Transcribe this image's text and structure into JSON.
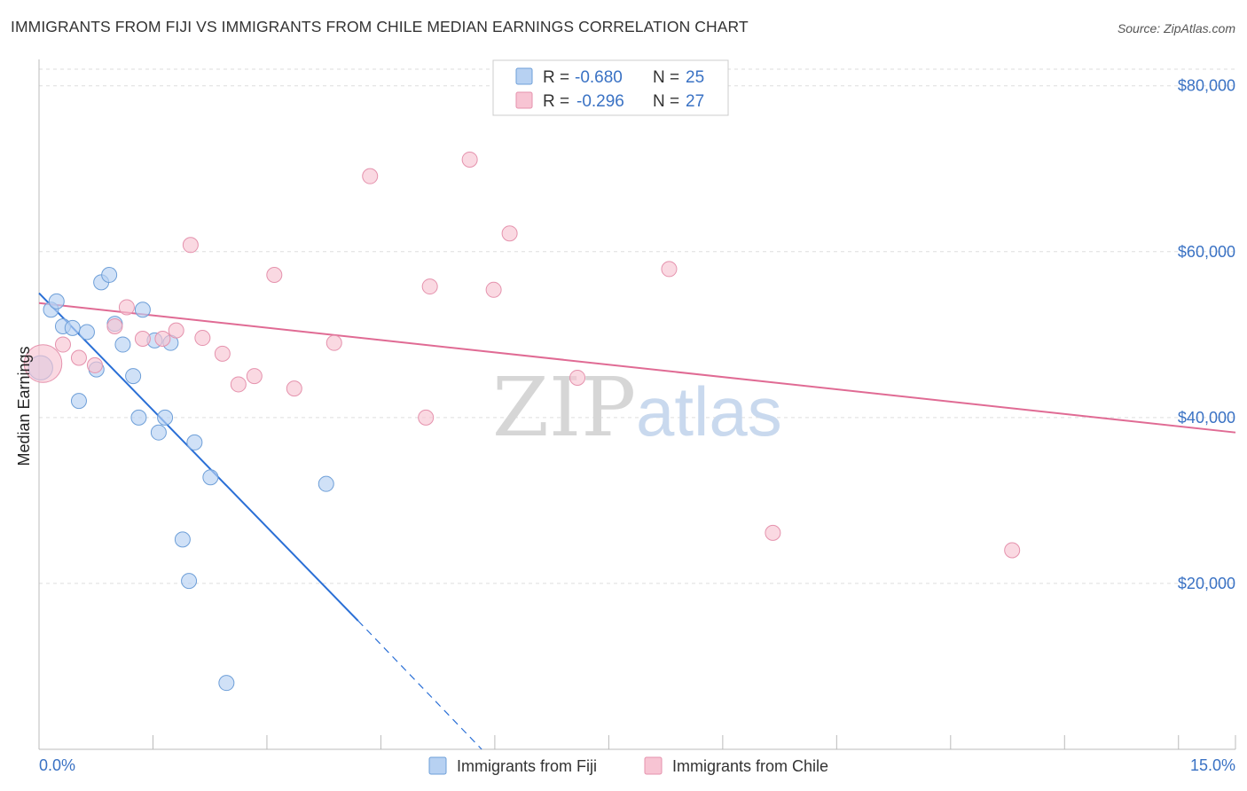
{
  "title": "IMMIGRANTS FROM FIJI VS IMMIGRANTS FROM CHILE MEDIAN EARNINGS CORRELATION CHART",
  "source": "Source: ZipAtlas.com",
  "watermark": {
    "part1": "ZIP",
    "part2": "atlas"
  },
  "colors": {
    "fiji_fill": "#b7d1f2",
    "fiji_stroke": "#6e9fd8",
    "fiji_line": "#2a6fd6",
    "chile_fill": "#f7c4d3",
    "chile_stroke": "#e592ad",
    "chile_line": "#e06b94",
    "grid": "#dddddd",
    "axis_text": "#3a72c4"
  },
  "chart_data": {
    "type": "scatter",
    "xlabel": "",
    "ylabel": "Median Earnings",
    "xlim": [
      0,
      15
    ],
    "ylim": [
      0,
      82000
    ],
    "x_tick_labels": {
      "left": "0.0%",
      "right": "15.0%"
    },
    "y_ticks": [
      {
        "value": 20000,
        "label": "$20,000"
      },
      {
        "value": 40000,
        "label": "$40,000"
      },
      {
        "value": 60000,
        "label": "$60,000"
      },
      {
        "value": 80000,
        "label": "$80,000"
      }
    ],
    "legend": {
      "rows": [
        {
          "r_label": "R =",
          "r_value": "-0.680",
          "n_label": "N =",
          "n_value": "25"
        },
        {
          "r_label": "R =",
          "r_value": "-0.296",
          "n_label": "N =",
          "n_value": "27"
        }
      ]
    },
    "series": [
      {
        "name": "Immigrants from Fiji",
        "points": [
          [
            0.02,
            46000,
            1.6
          ],
          [
            0.15,
            53000,
            1
          ],
          [
            0.22,
            54000,
            1
          ],
          [
            0.3,
            51000,
            1
          ],
          [
            0.42,
            50800,
            1
          ],
          [
            0.6,
            50300,
            1
          ],
          [
            0.72,
            45800,
            1
          ],
          [
            0.78,
            56300,
            1
          ],
          [
            0.88,
            57200,
            1
          ],
          [
            0.95,
            51300,
            1
          ],
          [
            1.05,
            48800,
            1
          ],
          [
            1.18,
            45000,
            1
          ],
          [
            1.25,
            40000,
            1
          ],
          [
            1.3,
            53000,
            1
          ],
          [
            1.45,
            49300,
            1
          ],
          [
            1.5,
            38200,
            1
          ],
          [
            1.58,
            40000,
            1
          ],
          [
            1.65,
            49000,
            1
          ],
          [
            0.5,
            42000,
            1
          ],
          [
            1.95,
            37000,
            1
          ],
          [
            2.15,
            32800,
            1
          ],
          [
            1.8,
            25300,
            1
          ],
          [
            1.88,
            20300,
            1
          ],
          [
            3.6,
            32000,
            1
          ],
          [
            2.35,
            8000,
            1
          ]
        ],
        "trend": {
          "x0": 0.0,
          "y0": 55000,
          "x1": 4.0,
          "y1": 15500,
          "dash_to_x": 5.55,
          "dash_to_y": 0
        }
      },
      {
        "name": "Immigrants from Chile",
        "points": [
          [
            0.05,
            46500,
            2.5
          ],
          [
            0.3,
            48800,
            1
          ],
          [
            0.5,
            47200,
            1
          ],
          [
            0.7,
            46300,
            1
          ],
          [
            0.95,
            51000,
            1
          ],
          [
            1.1,
            53300,
            1
          ],
          [
            1.3,
            49500,
            1
          ],
          [
            1.55,
            49500,
            1
          ],
          [
            1.72,
            50500,
            1
          ],
          [
            1.9,
            60800,
            1
          ],
          [
            2.05,
            49600,
            1
          ],
          [
            2.3,
            47700,
            1
          ],
          [
            2.5,
            44000,
            1
          ],
          [
            2.7,
            45000,
            1
          ],
          [
            2.95,
            57200,
            1
          ],
          [
            3.2,
            43500,
            1
          ],
          [
            3.7,
            49000,
            1
          ],
          [
            4.15,
            69100,
            1
          ],
          [
            4.85,
            40000,
            1
          ],
          [
            4.9,
            55800,
            1
          ],
          [
            5.4,
            71100,
            1
          ],
          [
            5.7,
            55400,
            1
          ],
          [
            5.9,
            62200,
            1
          ],
          [
            6.75,
            44800,
            1
          ],
          [
            7.9,
            57900,
            1
          ],
          [
            9.2,
            26100,
            1
          ],
          [
            12.2,
            24000,
            1
          ]
        ],
        "trend": {
          "x0": 0.0,
          "y0": 53800,
          "x1": 15.0,
          "y1": 38200
        }
      }
    ]
  }
}
